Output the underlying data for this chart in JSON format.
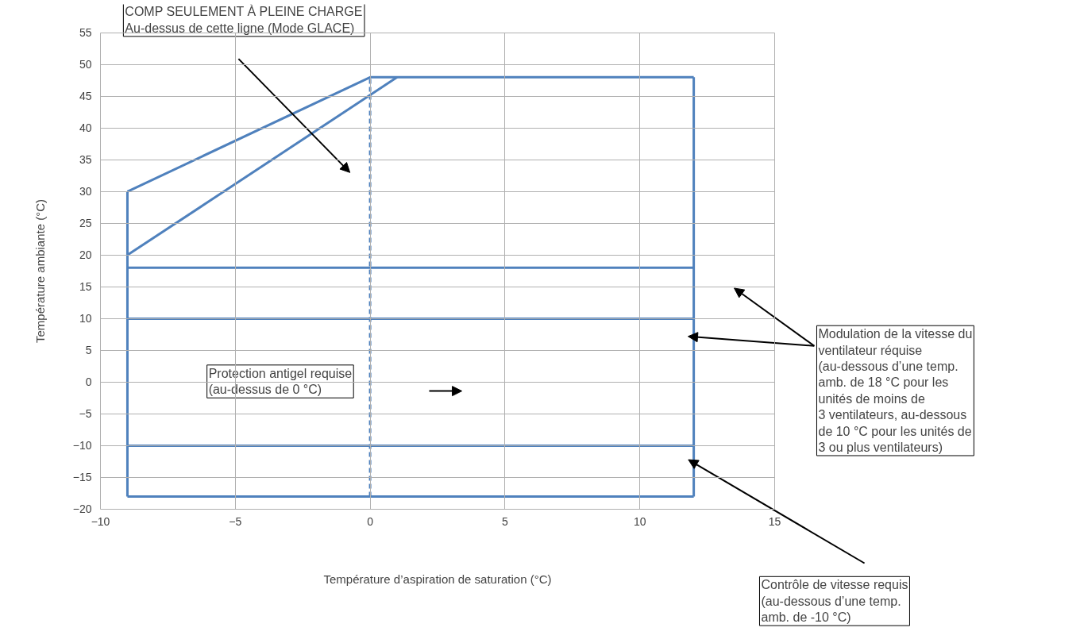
{
  "chart_data": {
    "type": "line",
    "xlabel": "Température d’aspiration de saturation (°C)",
    "ylabel": "Température ambiante (°C)",
    "xlim": [
      -10,
      15
    ],
    "ylim": [
      -20,
      55
    ],
    "xticks": [
      -10,
      -5,
      0,
      5,
      10,
      15
    ],
    "yticks": [
      -20,
      -15,
      -10,
      -5,
      0,
      5,
      10,
      15,
      20,
      25,
      30,
      35,
      40,
      45,
      50,
      55
    ],
    "grid": true,
    "line_style": "solid",
    "series": [
      {
        "color": "#4f81bd",
        "x": [
          -9,
          0,
          12
        ],
        "values": [
          30,
          48,
          48
        ]
      },
      {
        "color": "#4f81bd",
        "x": [
          -9,
          1
        ],
        "values": [
          20,
          48
        ]
      },
      {
        "color": "#4f81bd",
        "x": [
          -9,
          12
        ],
        "values": [
          18,
          18
        ]
      },
      {
        "color": "#4f81bd",
        "x": [
          -9,
          12
        ],
        "values": [
          10,
          10
        ]
      },
      {
        "color": "#4f81bd",
        "x": [
          -9,
          12
        ],
        "values": [
          -10,
          -10
        ]
      },
      {
        "color": "#4f81bd",
        "x": [
          -9,
          12
        ],
        "values": [
          -18,
          -18
        ]
      },
      {
        "color": "#4f81bd",
        "x": [
          -9,
          -9
        ],
        "values": [
          -18,
          30
        ]
      },
      {
        "color": "#4f81bd",
        "x": [
          12,
          12
        ],
        "values": [
          -18,
          48
        ]
      },
      {
        "color": "#4f81bd",
        "x": [
          0,
          0
        ],
        "values": [
          -18,
          48
        ],
        "line_style": "dashed"
      }
    ],
    "annotations": [
      "COMP SEULEMENT À PLEINE CHARGE\nAu-dessus de cette ligne (Mode GLACE)",
      "Protection antigel requise\n(au-dessus de 0 °C)",
      "Modulation de la vitesse du\nventilateur réquise\n(au-dessous d’une temp.\namb. de 18 °C pour les\nunités de moins de\n3 ventilateurs, au-dessous\nde 10 °C pour les unités de\n3 ou plus ventilateurs)",
      "Contrôle de vitesse requis\n(au-dessous d’une temp.\namb. de -10 °C)"
    ]
  }
}
